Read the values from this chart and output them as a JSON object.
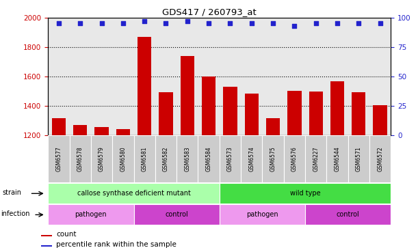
{
  "title": "GDS417 / 260793_at",
  "samples": [
    "GSM6577",
    "GSM6578",
    "GSM6579",
    "GSM6580",
    "GSM6581",
    "GSM6582",
    "GSM6583",
    "GSM6584",
    "GSM6573",
    "GSM6574",
    "GSM6575",
    "GSM6576",
    "GSM6227",
    "GSM6544",
    "GSM6571",
    "GSM6572"
  ],
  "counts": [
    1315,
    1270,
    1255,
    1238,
    1868,
    1490,
    1740,
    1600,
    1530,
    1480,
    1315,
    1500,
    1495,
    1565,
    1490,
    1405
  ],
  "percentiles": [
    95,
    95,
    95,
    95,
    97,
    95,
    97,
    95,
    95,
    95,
    95,
    93,
    95,
    95,
    95,
    95
  ],
  "ylim_left": [
    1200,
    2000
  ],
  "ylim_right": [
    0,
    100
  ],
  "bar_color": "#cc0000",
  "dot_color": "#2222cc",
  "grid_color": "#000000",
  "strain_groups": [
    {
      "label": "callose synthase deficient mutant",
      "start": 0,
      "end": 8,
      "color": "#aaffaa"
    },
    {
      "label": "wild type",
      "start": 8,
      "end": 16,
      "color": "#44dd44"
    }
  ],
  "infection_groups": [
    {
      "label": "pathogen",
      "start": 0,
      "end": 4,
      "color": "#ee99ee"
    },
    {
      "label": "control",
      "start": 4,
      "end": 8,
      "color": "#cc44cc"
    },
    {
      "label": "pathogen",
      "start": 8,
      "end": 12,
      "color": "#ee99ee"
    },
    {
      "label": "control",
      "start": 12,
      "end": 16,
      "color": "#cc44cc"
    }
  ],
  "legend_count_color": "#cc0000",
  "legend_dot_color": "#2222cc",
  "legend_count_label": "count",
  "legend_dot_label": "percentile rank within the sample",
  "tick_color_left": "#cc0000",
  "tick_color_right": "#2222cc",
  "yticks_left": [
    1200,
    1400,
    1600,
    1800,
    2000
  ],
  "yticks_right": [
    0,
    25,
    50,
    75,
    100
  ],
  "plot_bg_color": "#e8e8e8",
  "label_bg_color": "#cccccc"
}
